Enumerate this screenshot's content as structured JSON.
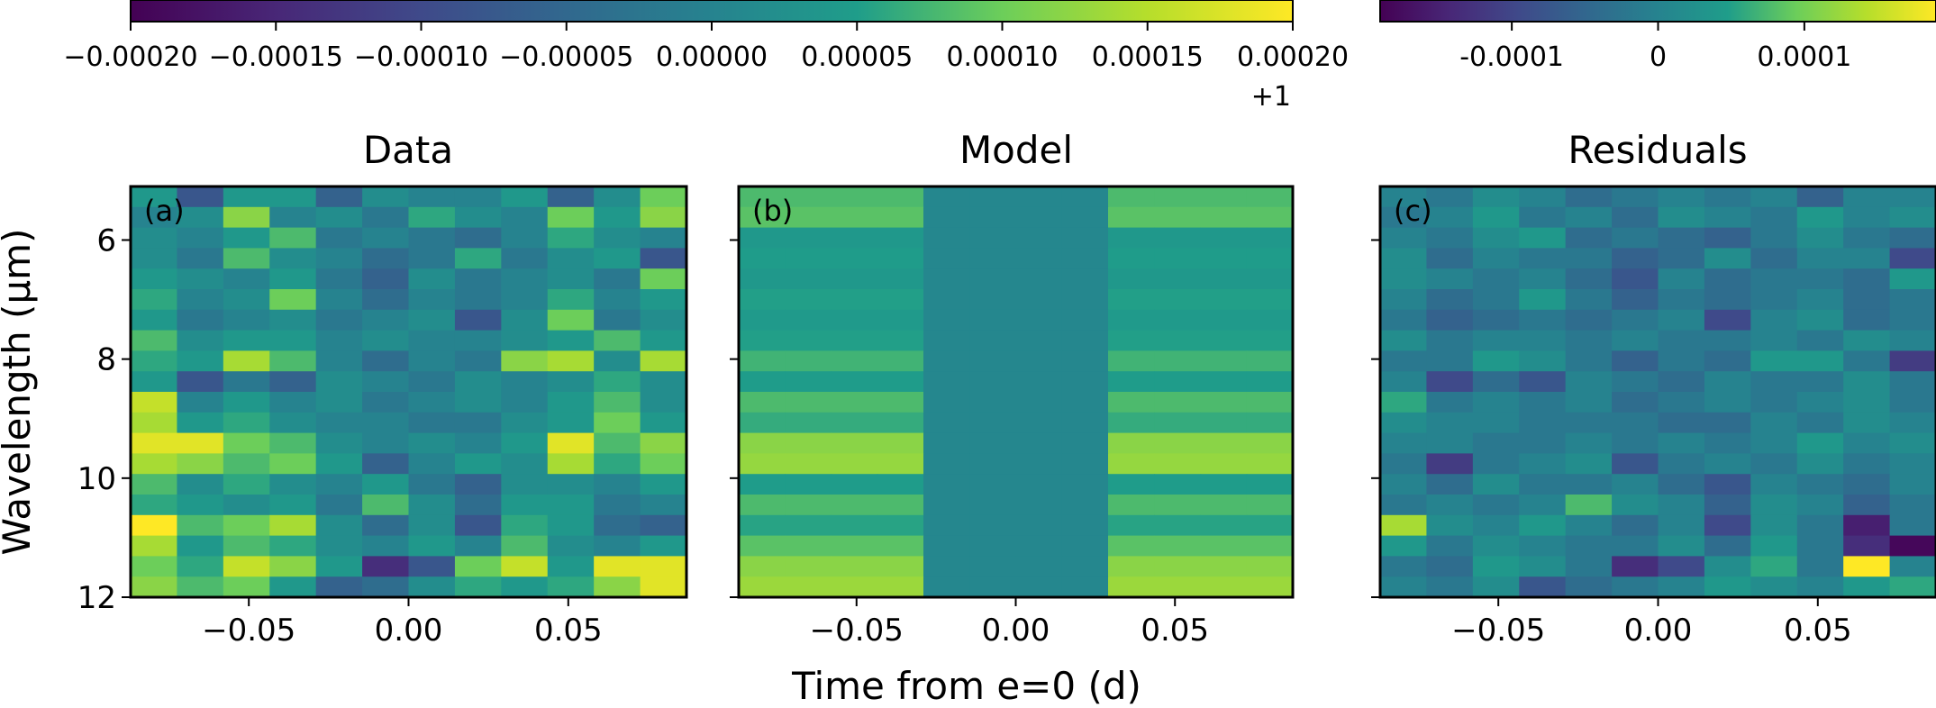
{
  "colors": {
    "viridis": [
      "#440154",
      "#482777",
      "#3f4a8a",
      "#31688e",
      "#26838f",
      "#1f9d8a",
      "#6cce5a",
      "#b6de2b",
      "#fee825"
    ],
    "axis": "#000000",
    "background": "#ffffff"
  },
  "chart_data": [
    {
      "type": "colorbar",
      "name": "data-model-colorbar",
      "vmin": -0.0002,
      "vmax": 0.0002,
      "offset_label": "+1",
      "ticks": [
        -0.0002,
        -0.00015,
        -0.0001,
        -5e-05,
        0,
        5e-05,
        0.0001,
        0.00015,
        0.0002
      ],
      "tick_labels": [
        "−0.00020",
        "−0.00015",
        "−0.00010",
        "−0.00005",
        "0.00000",
        "0.00005",
        "0.00010",
        "0.00015",
        "0.00020"
      ]
    },
    {
      "type": "colorbar",
      "name": "residuals-colorbar",
      "vmin": -0.00019,
      "vmax": 0.00019,
      "ticks": [
        -0.0001,
        0,
        0.0001
      ],
      "tick_labels": [
        "-0.0001",
        "0",
        "0.0001"
      ]
    },
    {
      "type": "heatmap",
      "name": "data-panel",
      "title": "Data",
      "panel_label": "(a)",
      "xlabel": "",
      "ylabel": "Wavelength (μm)",
      "xlim": [
        -0.087,
        0.087
      ],
      "ylim": [
        12,
        5.1
      ],
      "xticks": [
        -0.05,
        0,
        0.05
      ],
      "xtick_labels": [
        "−0.05",
        "0.00",
        "0.05"
      ],
      "yticks": [
        6,
        8,
        10,
        12
      ],
      "ytick_labels": [
        "6",
        "8",
        "10",
        "12"
      ],
      "n_time": 12,
      "n_wavelength": 20,
      "vmin": -0.0002,
      "vmax": 0.0002,
      "values": [
        [
          0.6,
          0.3,
          0.6,
          0.6,
          0.35,
          0.55,
          0.5,
          0.5,
          0.6,
          0.35,
          0.55,
          0.75
        ],
        [
          0.5,
          0.55,
          0.8,
          0.5,
          0.55,
          0.45,
          0.65,
          0.55,
          0.5,
          0.75,
          0.6,
          0.8
        ],
        [
          0.55,
          0.5,
          0.6,
          0.7,
          0.45,
          0.5,
          0.45,
          0.4,
          0.5,
          0.65,
          0.55,
          0.5
        ],
        [
          0.55,
          0.45,
          0.7,
          0.55,
          0.5,
          0.4,
          0.45,
          0.65,
          0.45,
          0.55,
          0.6,
          0.3
        ],
        [
          0.6,
          0.55,
          0.5,
          0.6,
          0.45,
          0.35,
          0.55,
          0.45,
          0.5,
          0.55,
          0.45,
          0.75
        ],
        [
          0.65,
          0.5,
          0.55,
          0.75,
          0.5,
          0.4,
          0.5,
          0.45,
          0.5,
          0.65,
          0.5,
          0.6
        ],
        [
          0.6,
          0.45,
          0.5,
          0.55,
          0.45,
          0.5,
          0.55,
          0.3,
          0.55,
          0.75,
          0.45,
          0.55
        ],
        [
          0.7,
          0.55,
          0.6,
          0.6,
          0.5,
          0.55,
          0.5,
          0.5,
          0.55,
          0.6,
          0.7,
          0.6
        ],
        [
          0.65,
          0.6,
          0.85,
          0.7,
          0.5,
          0.4,
          0.5,
          0.45,
          0.8,
          0.85,
          0.55,
          0.85
        ],
        [
          0.6,
          0.3,
          0.45,
          0.35,
          0.55,
          0.5,
          0.45,
          0.55,
          0.5,
          0.55,
          0.65,
          0.55
        ],
        [
          0.9,
          0.5,
          0.6,
          0.5,
          0.55,
          0.45,
          0.5,
          0.55,
          0.5,
          0.6,
          0.7,
          0.55
        ],
        [
          0.85,
          0.6,
          0.65,
          0.55,
          0.5,
          0.5,
          0.45,
          0.45,
          0.55,
          0.6,
          0.75,
          0.6
        ],
        [
          0.95,
          0.95,
          0.75,
          0.7,
          0.55,
          0.5,
          0.55,
          0.5,
          0.6,
          0.95,
          0.7,
          0.8
        ],
        [
          0.85,
          0.8,
          0.7,
          0.75,
          0.6,
          0.35,
          0.5,
          0.6,
          0.55,
          0.85,
          0.65,
          0.75
        ],
        [
          0.7,
          0.55,
          0.65,
          0.55,
          0.5,
          0.6,
          0.45,
          0.35,
          0.55,
          0.55,
          0.5,
          0.6
        ],
        [
          0.65,
          0.6,
          0.55,
          0.6,
          0.45,
          0.7,
          0.55,
          0.4,
          0.6,
          0.6,
          0.45,
          0.5
        ],
        [
          1.0,
          0.7,
          0.75,
          0.85,
          0.55,
          0.4,
          0.55,
          0.3,
          0.65,
          0.6,
          0.4,
          0.35
        ],
        [
          0.85,
          0.6,
          0.7,
          0.65,
          0.55,
          0.5,
          0.6,
          0.5,
          0.7,
          0.55,
          0.5,
          0.6
        ],
        [
          0.75,
          0.65,
          0.9,
          0.8,
          0.6,
          0.15,
          0.3,
          0.75,
          0.9,
          0.6,
          0.95,
          0.95
        ],
        [
          0.8,
          0.7,
          0.75,
          0.6,
          0.35,
          0.4,
          0.55,
          0.65,
          0.6,
          0.65,
          0.8,
          0.95
        ]
      ]
    },
    {
      "type": "heatmap",
      "name": "model-panel",
      "title": "Model",
      "panel_label": "(b)",
      "xlabel": "Time from e=0 (d)",
      "xlim": [
        -0.087,
        0.087
      ],
      "ylim": [
        12,
        5.1
      ],
      "xticks": [
        -0.05,
        0,
        0.05
      ],
      "xtick_labels": [
        "−0.05",
        "0.00",
        "0.05"
      ],
      "n_time": 12,
      "n_wavelength": 20,
      "vmin": -0.0002,
      "vmax": 0.0002,
      "eclipse_columns": [
        4,
        5,
        6,
        7
      ],
      "eclipse_level": 0.52,
      "row_levels": [
        0.7,
        0.72,
        0.6,
        0.62,
        0.6,
        0.63,
        0.61,
        0.63,
        0.68,
        0.62,
        0.7,
        0.66,
        0.8,
        0.82,
        0.62,
        0.7,
        0.64,
        0.72,
        0.8,
        0.83
      ]
    },
    {
      "type": "heatmap",
      "name": "residuals-panel",
      "title": "Residuals",
      "panel_label": "(c)",
      "xlabel": "",
      "xlim": [
        -0.087,
        0.087
      ],
      "ylim": [
        12,
        5.1
      ],
      "xticks": [
        -0.05,
        0,
        0.05
      ],
      "xtick_labels": [
        "−0.05",
        "0.00",
        "0.05"
      ],
      "n_time": 12,
      "n_wavelength": 20,
      "vmin": -0.00019,
      "vmax": 0.00019,
      "values": [
        [
          0.5,
          0.45,
          0.55,
          0.5,
          0.4,
          0.45,
          0.5,
          0.45,
          0.5,
          0.35,
          0.5,
          0.5
        ],
        [
          0.45,
          0.5,
          0.6,
          0.45,
          0.5,
          0.4,
          0.55,
          0.5,
          0.45,
          0.6,
          0.5,
          0.55
        ],
        [
          0.5,
          0.45,
          0.55,
          0.6,
          0.4,
          0.45,
          0.4,
          0.35,
          0.45,
          0.55,
          0.45,
          0.4
        ],
        [
          0.55,
          0.4,
          0.5,
          0.45,
          0.45,
          0.35,
          0.4,
          0.55,
          0.4,
          0.5,
          0.5,
          0.25
        ],
        [
          0.55,
          0.5,
          0.45,
          0.5,
          0.4,
          0.3,
          0.5,
          0.4,
          0.45,
          0.45,
          0.4,
          0.6
        ],
        [
          0.5,
          0.4,
          0.45,
          0.6,
          0.45,
          0.35,
          0.45,
          0.4,
          0.45,
          0.5,
          0.4,
          0.45
        ],
        [
          0.45,
          0.35,
          0.4,
          0.45,
          0.4,
          0.45,
          0.5,
          0.25,
          0.5,
          0.55,
          0.4,
          0.45
        ],
        [
          0.55,
          0.45,
          0.5,
          0.5,
          0.45,
          0.5,
          0.45,
          0.45,
          0.5,
          0.45,
          0.55,
          0.5
        ],
        [
          0.45,
          0.45,
          0.6,
          0.55,
          0.45,
          0.35,
          0.45,
          0.4,
          0.6,
          0.6,
          0.45,
          0.2
        ],
        [
          0.5,
          0.25,
          0.4,
          0.3,
          0.5,
          0.45,
          0.4,
          0.5,
          0.45,
          0.45,
          0.55,
          0.45
        ],
        [
          0.65,
          0.45,
          0.5,
          0.45,
          0.5,
          0.4,
          0.45,
          0.5,
          0.45,
          0.5,
          0.55,
          0.45
        ],
        [
          0.55,
          0.5,
          0.5,
          0.45,
          0.45,
          0.45,
          0.4,
          0.4,
          0.5,
          0.45,
          0.55,
          0.5
        ],
        [
          0.5,
          0.5,
          0.45,
          0.45,
          0.5,
          0.45,
          0.5,
          0.45,
          0.5,
          0.6,
          0.5,
          0.55
        ],
        [
          0.45,
          0.2,
          0.45,
          0.5,
          0.55,
          0.3,
          0.45,
          0.5,
          0.45,
          0.55,
          0.45,
          0.5
        ],
        [
          0.5,
          0.4,
          0.55,
          0.45,
          0.45,
          0.5,
          0.4,
          0.3,
          0.5,
          0.45,
          0.4,
          0.5
        ],
        [
          0.45,
          0.5,
          0.45,
          0.5,
          0.7,
          0.55,
          0.5,
          0.35,
          0.55,
          0.5,
          0.35,
          0.45
        ],
        [
          0.85,
          0.55,
          0.5,
          0.6,
          0.5,
          0.4,
          0.5,
          0.25,
          0.55,
          0.45,
          0.1,
          0.45
        ],
        [
          0.6,
          0.45,
          0.55,
          0.5,
          0.45,
          0.45,
          0.55,
          0.4,
          0.6,
          0.45,
          0.15,
          0.02
        ],
        [
          0.45,
          0.4,
          0.6,
          0.55,
          0.45,
          0.15,
          0.25,
          0.55,
          0.65,
          0.45,
          1.0,
          0.5
        ],
        [
          0.5,
          0.45,
          0.55,
          0.3,
          0.4,
          0.45,
          0.5,
          0.6,
          0.55,
          0.5,
          0.6,
          0.65
        ]
      ]
    }
  ]
}
